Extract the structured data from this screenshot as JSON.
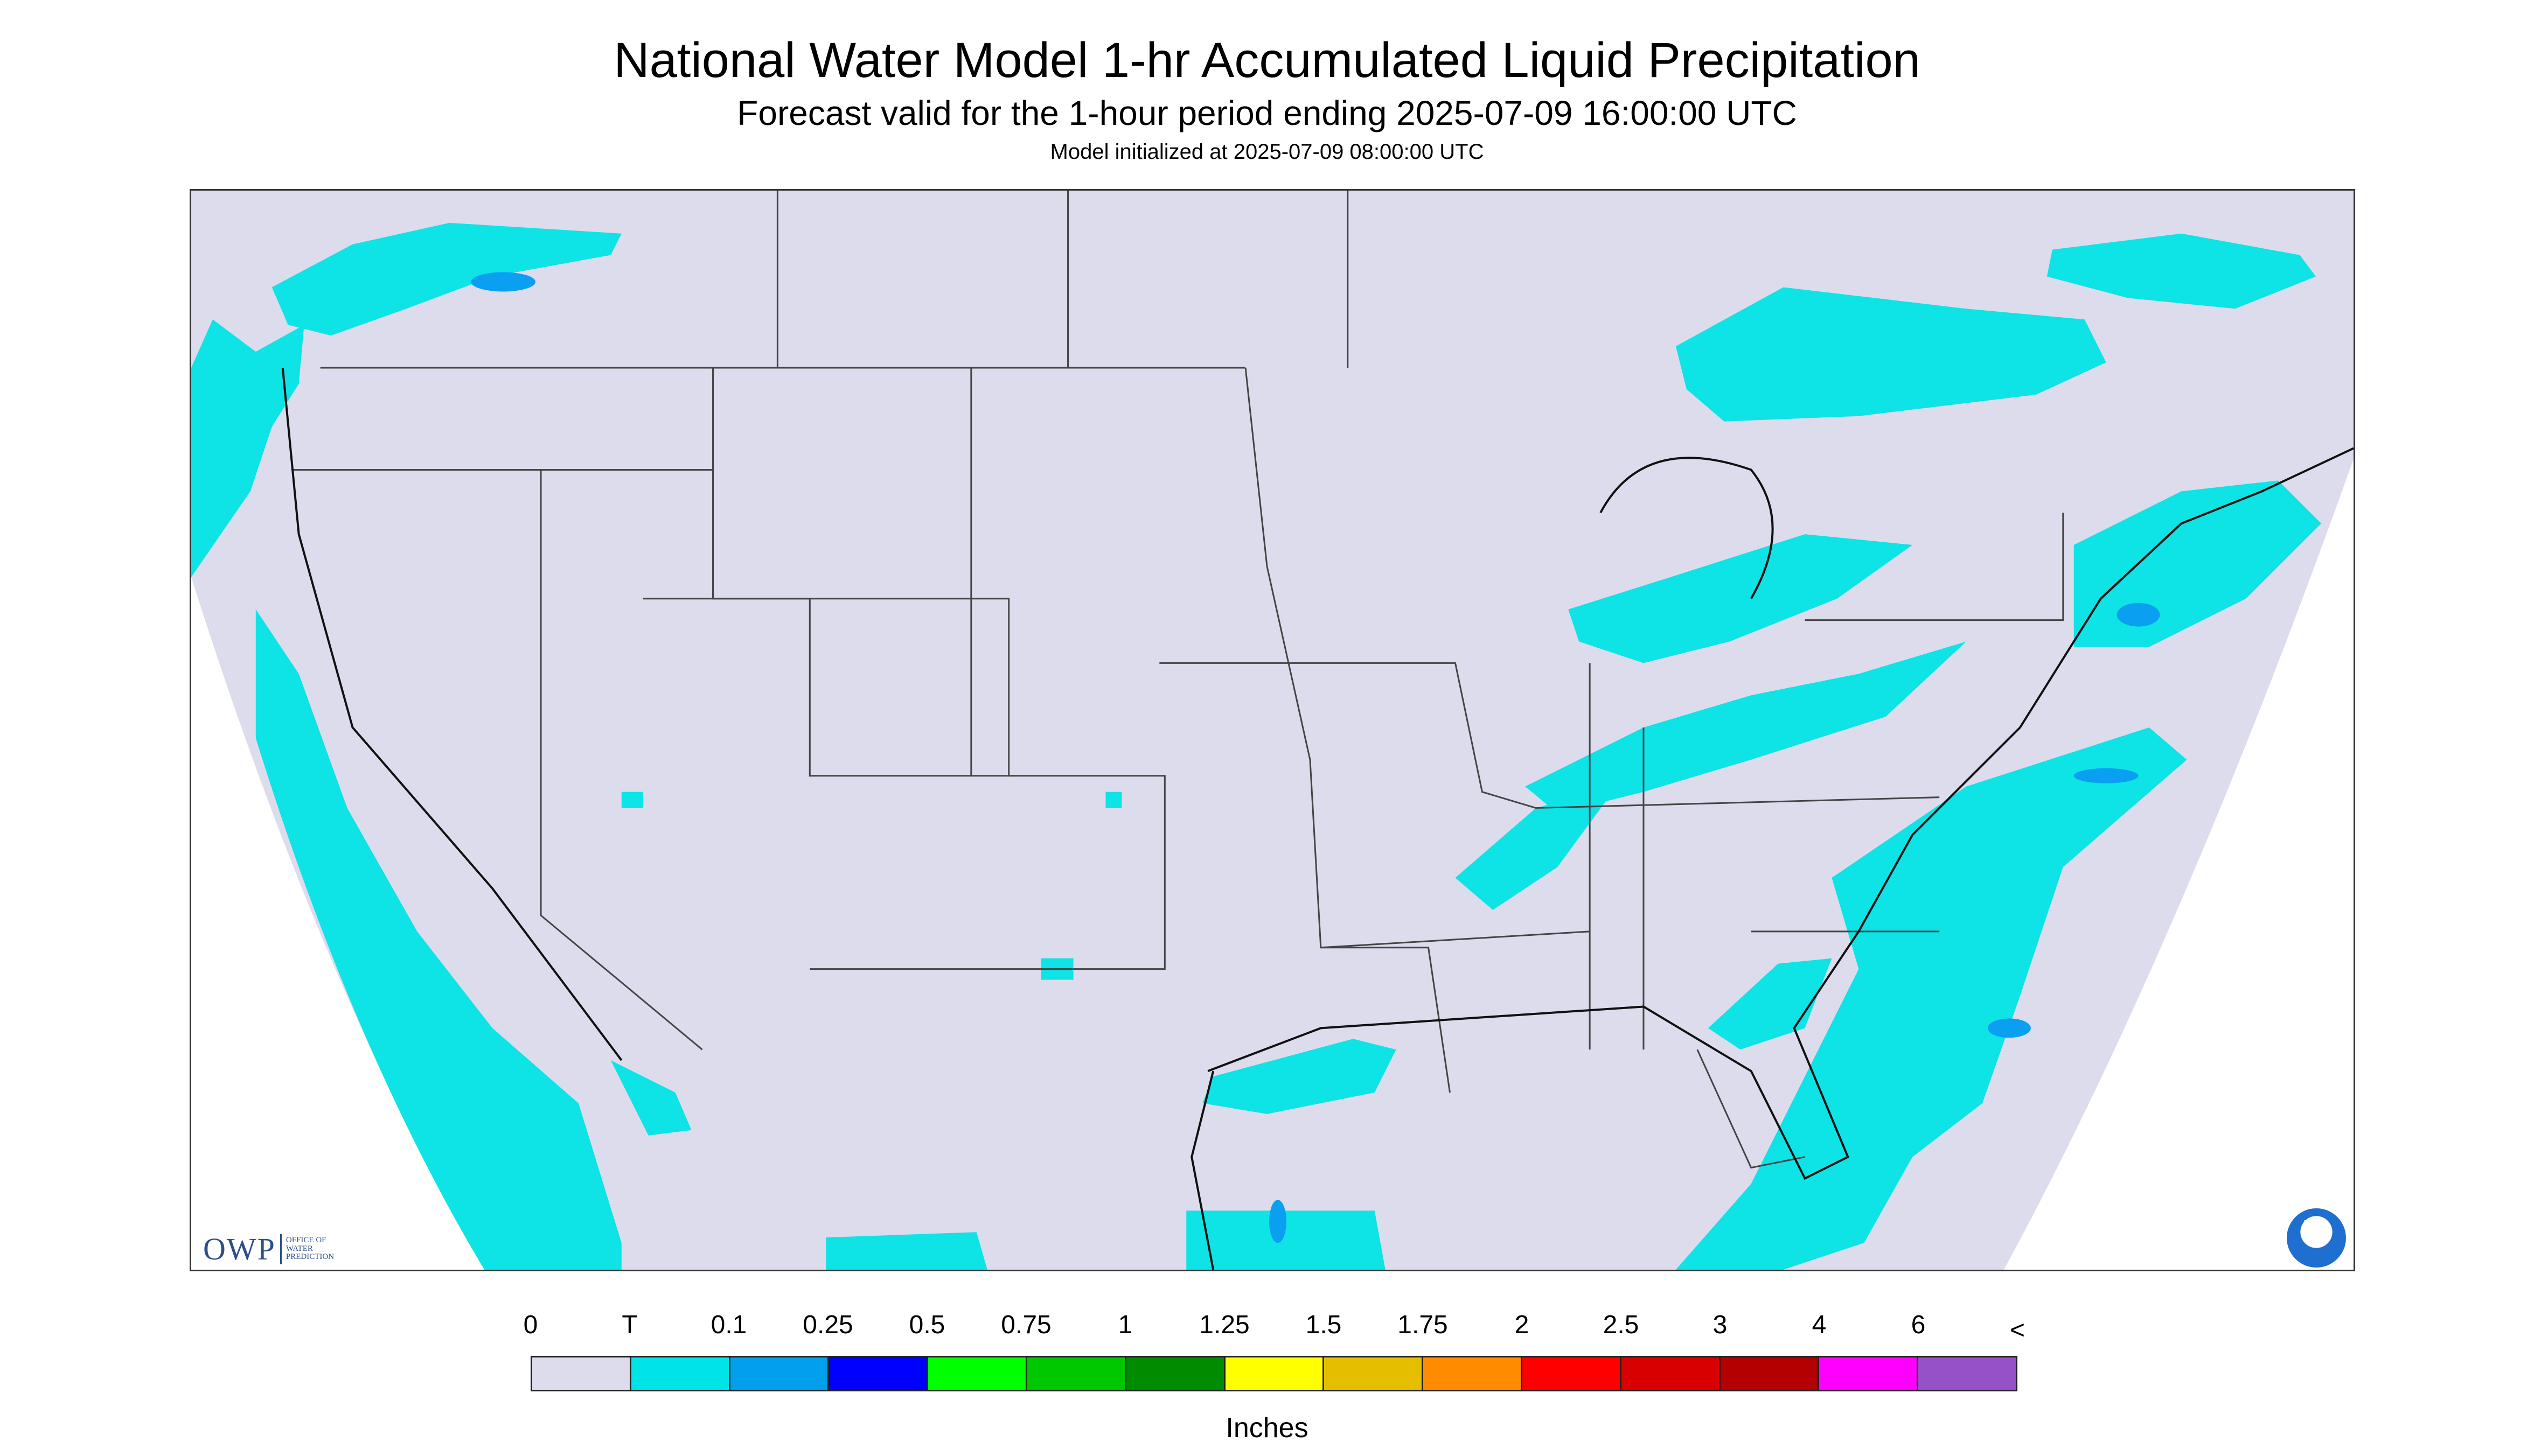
{
  "header": {
    "title": "National Water Model 1-hr Accumulated Liquid Precipitation",
    "subtitle": "Forecast valid for the 1-hour period ending 2025-07-09 16:00:00 UTC",
    "init": "Model initialized at 2025-07-09 08:00:00 UTC"
  },
  "logos": {
    "owp_mark": "OWP",
    "owp_text": "Office of Water Prediction",
    "noaa_mark": "NOAA"
  },
  "map": {
    "background_color": "#dcdcec",
    "rain_color": "#0ee3e6",
    "moderate_color": "#0a9ff0",
    "border_color": "#333333"
  },
  "legend": {
    "labels": [
      "0",
      "T",
      "0.1",
      "0.25",
      "0.5",
      "0.75",
      "1",
      "1.25",
      "1.5",
      "1.75",
      "2",
      "2.5",
      "3",
      "4",
      "6",
      "<"
    ],
    "colors": [
      "#dcdcec",
      "#00e3e7",
      "#00a0ee",
      "#0000ff",
      "#00ff00",
      "#00c800",
      "#008c00",
      "#ffff00",
      "#e6be00",
      "#ff8c00",
      "#ff0000",
      "#d80000",
      "#b40000",
      "#ff00ff",
      "#9650c8"
    ],
    "units": "Inches"
  }
}
